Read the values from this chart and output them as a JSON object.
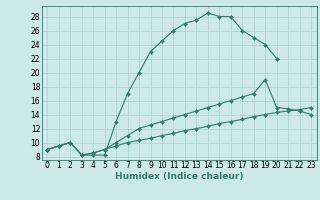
{
  "xlabel": "Humidex (Indice chaleur)",
  "bg_color": "#cce8e8",
  "line_color": "#2e7d6e",
  "grid_color": "#aacfcf",
  "xlim": [
    -0.5,
    23.5
  ],
  "ylim": [
    7.5,
    29.5
  ],
  "yticks": [
    8,
    10,
    12,
    14,
    16,
    18,
    20,
    22,
    24,
    26,
    28
  ],
  "xticks": [
    0,
    1,
    2,
    3,
    4,
    5,
    6,
    7,
    8,
    9,
    10,
    11,
    12,
    13,
    14,
    15,
    16,
    17,
    18,
    19,
    20,
    21,
    22,
    23
  ],
  "line1_x": [
    0,
    1,
    2,
    3,
    4,
    5,
    6,
    7,
    8,
    9,
    10,
    11,
    12,
    13,
    14,
    15,
    16,
    17,
    18,
    19,
    20
  ],
  "line1_y": [
    9.0,
    9.5,
    10.0,
    8.2,
    8.2,
    8.2,
    13.0,
    17.0,
    20.0,
    23.0,
    24.5,
    26.0,
    27.0,
    27.5,
    28.5,
    28.0,
    28.0,
    26.0,
    25.0,
    24.0,
    22.0
  ],
  "line2_x": [
    0,
    1,
    2,
    3,
    4,
    5,
    6,
    7,
    8,
    9,
    10,
    11,
    12,
    13,
    14,
    15,
    16,
    17,
    18,
    19,
    20,
    21,
    22,
    23
  ],
  "line2_y": [
    9.0,
    9.5,
    10.0,
    8.2,
    8.5,
    9.0,
    10.0,
    11.0,
    12.0,
    12.5,
    13.0,
    13.5,
    14.0,
    14.5,
    15.0,
    15.5,
    16.0,
    16.5,
    17.0,
    19.0,
    15.0,
    14.8,
    14.5,
    14.0
  ],
  "line3_x": [
    0,
    1,
    2,
    3,
    4,
    5,
    6,
    7,
    8,
    9,
    10,
    11,
    12,
    13,
    14,
    15,
    16,
    17,
    18,
    19,
    20,
    21,
    22,
    23
  ],
  "line3_y": [
    9.0,
    9.5,
    10.0,
    8.2,
    8.5,
    9.0,
    9.5,
    10.0,
    10.3,
    10.6,
    11.0,
    11.3,
    11.7,
    12.0,
    12.3,
    12.7,
    13.0,
    13.3,
    13.7,
    14.0,
    14.3,
    14.5,
    14.7,
    15.0
  ],
  "tick_fontsize": 5.5,
  "xlabel_fontsize": 6.5
}
